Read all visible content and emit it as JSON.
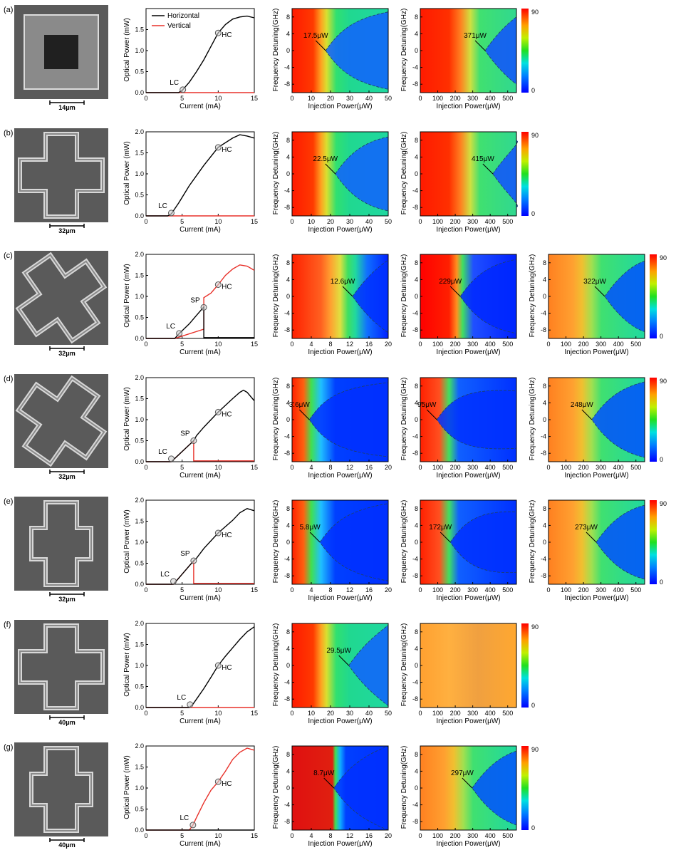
{
  "colorbar": {
    "max": "90",
    "min": "0"
  },
  "labels": {
    "current": "Current (mA)",
    "optical_power": "Optical Power (mW)",
    "injection_power": "Injection Power(μW)",
    "frequency_detuning": "Frequency Detuning(GHz)",
    "lc": "LC",
    "hc": "HC",
    "sp": "SP"
  },
  "chart_data": {
    "type": "line",
    "rows": [
      {
        "label": "(a)",
        "scale": "14μm",
        "shape": "square",
        "li": {
          "xlim": [
            0,
            15
          ],
          "ylim": [
            0,
            2.0
          ],
          "yticks": [
            "0.0",
            "0.5",
            "1.0",
            "1.5"
          ],
          "legend": [
            "Horizontal",
            "Vertical"
          ],
          "horizontal": [
            [
              0,
              0
            ],
            [
              4.5,
              0
            ],
            [
              5,
              0.05
            ],
            [
              6,
              0.25
            ],
            [
              7,
              0.5
            ],
            [
              8,
              0.78
            ],
            [
              9,
              1.1
            ],
            [
              10,
              1.42
            ],
            [
              11,
              1.62
            ],
            [
              12,
              1.75
            ],
            [
              13,
              1.8
            ],
            [
              14,
              1.82
            ],
            [
              15,
              1.78
            ]
          ],
          "vertical": [
            [
              0,
              0
            ],
            [
              15,
              0
            ]
          ],
          "markers": [
            {
              "name": "LC",
              "x": 5.1,
              "y": 0.07
            },
            {
              "name": "HC",
              "x": 10,
              "y": 1.42
            }
          ]
        },
        "maps": [
          {
            "xlim": [
              0,
              50
            ],
            "xticks": [
              0,
              10,
              20,
              30,
              40,
              50
            ],
            "thr": "17.5μW",
            "tx": 17.5,
            "style": "A",
            "w": 0.46
          },
          {
            "xlim": [
              0,
              550
            ],
            "xticks": [
              0,
              100,
              200,
              300,
              400,
              500
            ],
            "thr": "371μW",
            "tx": 371,
            "style": "B",
            "w": 0.4
          }
        ]
      },
      {
        "label": "(b)",
        "scale": "32μm",
        "shape": "cross",
        "li": {
          "xlim": [
            0,
            15
          ],
          "ylim": [
            0,
            2.0
          ],
          "yticks": [
            "0.0",
            "0.5",
            "1.0",
            "1.5",
            "2.0"
          ],
          "horizontal": [
            [
              0,
              0
            ],
            [
              3,
              0
            ],
            [
              3.5,
              0.05
            ],
            [
              4.5,
              0.3
            ],
            [
              6,
              0.72
            ],
            [
              8,
              1.2
            ],
            [
              10,
              1.63
            ],
            [
              12,
              1.85
            ],
            [
              13,
              1.93
            ],
            [
              14,
              1.9
            ],
            [
              15,
              1.85
            ]
          ],
          "vertical": [
            [
              0,
              0
            ],
            [
              15,
              0
            ]
          ],
          "markers": [
            {
              "name": "LC",
              "x": 3.5,
              "y": 0.07
            },
            {
              "name": "HC",
              "x": 10,
              "y": 1.63
            }
          ]
        },
        "maps": [
          {
            "xlim": [
              0,
              50
            ],
            "xticks": [
              0,
              10,
              20,
              30,
              40,
              50
            ],
            "thr": "22.5μW",
            "tx": 22.5,
            "style": "A",
            "w": 0.44
          },
          {
            "xlim": [
              0,
              550
            ],
            "xticks": [
              0,
              100,
              200,
              300,
              400,
              500
            ],
            "thr": "415μW",
            "tx": 415,
            "style": "B",
            "w": 0.4
          }
        ]
      },
      {
        "label": "(c)",
        "scale": "32μm",
        "shape": "cross-rot",
        "li": {
          "xlim": [
            0,
            15
          ],
          "ylim": [
            0,
            2.0
          ],
          "yticks": [
            "0.0",
            "0.5",
            "1.0",
            "1.5",
            "2.0"
          ],
          "horizontal": [
            [
              0,
              0
            ],
            [
              4,
              0
            ],
            [
              4.5,
              0.1
            ],
            [
              6,
              0.35
            ],
            [
              7,
              0.55
            ],
            [
              8,
              0.75
            ],
            [
              8,
              0.02
            ],
            [
              15,
              0.02
            ]
          ],
          "vertical": [
            [
              0,
              0
            ],
            [
              4,
              0
            ],
            [
              8,
              0.22
            ],
            [
              8,
              0.97
            ],
            [
              9,
              1.08
            ],
            [
              10,
              1.28
            ],
            [
              11,
              1.5
            ],
            [
              12,
              1.65
            ],
            [
              13,
              1.75
            ],
            [
              14,
              1.72
            ],
            [
              15,
              1.62
            ]
          ],
          "markers": [
            {
              "name": "LC",
              "x": 4.6,
              "y": 0.12
            },
            {
              "name": "SP",
              "x": 8,
              "y": 0.74
            },
            {
              "name": "HC",
              "x": 10,
              "y": 1.28
            }
          ]
        },
        "maps": [
          {
            "xlim": [
              0,
              20
            ],
            "xticks": [
              0,
              4,
              8,
              12,
              16,
              20
            ],
            "thr": "12.6μW",
            "tx": 12.6,
            "style": "C",
            "w": 0.43
          },
          {
            "xlim": [
              0,
              550
            ],
            "xticks": [
              0,
              100,
              200,
              300,
              400,
              500
            ],
            "thr": "229μW",
            "tx": 229,
            "style": "D",
            "w": 0.44
          },
          {
            "xlim": [
              0,
              550
            ],
            "xticks": [
              0,
              100,
              200,
              300,
              400,
              500
            ],
            "thr": "322μW",
            "tx": 322,
            "style": "E",
            "w": 0.42
          }
        ]
      },
      {
        "label": "(d)",
        "scale": "32μm",
        "shape": "cross-rot2",
        "li": {
          "xlim": [
            0,
            15
          ],
          "ylim": [
            0,
            2.0
          ],
          "yticks": [
            "0.0",
            "0.5",
            "1.0",
            "1.5",
            "2.0"
          ],
          "horizontal": [
            [
              0,
              0
            ],
            [
              3.5,
              0
            ],
            [
              6.6,
              0.5
            ],
            [
              7,
              0.62
            ],
            [
              8,
              0.82
            ],
            [
              10,
              1.18
            ],
            [
              12,
              1.5
            ],
            [
              13,
              1.65
            ],
            [
              13.5,
              1.7
            ],
            [
              14,
              1.65
            ],
            [
              15,
              1.45
            ]
          ],
          "vertical": [
            [
              0,
              0
            ],
            [
              3.5,
              0
            ],
            [
              6.6,
              0.5
            ],
            [
              6.6,
              0.02
            ],
            [
              15,
              0.02
            ]
          ],
          "markers": [
            {
              "name": "LC",
              "x": 3.5,
              "y": 0.07
            },
            {
              "name": "SP",
              "x": 6.6,
              "y": 0.5
            },
            {
              "name": "HC",
              "x": 10,
              "y": 1.18
            }
          ]
        },
        "maps": [
          {
            "xlim": [
              0,
              20
            ],
            "xticks": [
              0,
              4,
              8,
              12,
              16,
              20
            ],
            "thr": "3.6μW",
            "tx": 3.6,
            "style": "F",
            "w": 0.44
          },
          {
            "xlim": [
              0,
              550
            ],
            "xticks": [
              0,
              100,
              200,
              300,
              400,
              500
            ],
            "thr": "95μW",
            "tx": 95,
            "style": "G",
            "w": 0.34
          },
          {
            "xlim": [
              0,
              550
            ],
            "xticks": [
              0,
              100,
              200,
              300,
              400,
              500
            ],
            "thr": "248μW",
            "tx": 248,
            "style": "E",
            "w": 0.45
          }
        ]
      },
      {
        "label": "(e)",
        "scale": "32μm",
        "shape": "cross-vert",
        "li": {
          "xlim": [
            0,
            15
          ],
          "ylim": [
            0,
            2.0
          ],
          "yticks": [
            "0.0",
            "0.5",
            "1.0",
            "1.5",
            "2.0"
          ],
          "horizontal": [
            [
              0,
              0
            ],
            [
              3.8,
              0
            ],
            [
              6.6,
              0.56
            ],
            [
              7,
              0.62
            ],
            [
              8,
              0.85
            ],
            [
              10,
              1.22
            ],
            [
              12,
              1.52
            ],
            [
              13,
              1.7
            ],
            [
              14,
              1.8
            ],
            [
              15,
              1.75
            ]
          ],
          "vertical": [
            [
              0,
              0
            ],
            [
              3.8,
              0
            ],
            [
              6.6,
              0.56
            ],
            [
              6.6,
              0.02
            ],
            [
              15,
              0.02
            ]
          ],
          "markers": [
            {
              "name": "LC",
              "x": 3.8,
              "y": 0.07
            },
            {
              "name": "SP",
              "x": 6.6,
              "y": 0.56
            },
            {
              "name": "HC",
              "x": 10,
              "y": 1.22
            }
          ]
        },
        "maps": [
          {
            "xlim": [
              0,
              20
            ],
            "xticks": [
              0,
              4,
              8,
              12,
              16,
              20
            ],
            "thr": "5.8μW",
            "tx": 5.8,
            "style": "F",
            "w": 0.46
          },
          {
            "xlim": [
              0,
              550
            ],
            "xticks": [
              0,
              100,
              200,
              300,
              400,
              500
            ],
            "thr": "172μW",
            "tx": 172,
            "style": "G",
            "w": 0.36
          },
          {
            "xlim": [
              0,
              550
            ],
            "xticks": [
              0,
              100,
              200,
              300,
              400,
              500
            ],
            "thr": "273μW",
            "tx": 273,
            "style": "E",
            "w": 0.44
          }
        ]
      },
      {
        "label": "(f)",
        "scale": "40μm",
        "shape": "cross",
        "li": {
          "xlim": [
            0,
            15
          ],
          "ylim": [
            0,
            2.0
          ],
          "yticks": [
            "0.0",
            "0.5",
            "1.0",
            "1.5",
            "2.0"
          ],
          "horizontal": [
            [
              0,
              0
            ],
            [
              6,
              0
            ],
            [
              6.5,
              0.08
            ],
            [
              7,
              0.2
            ],
            [
              8,
              0.45
            ],
            [
              9,
              0.72
            ],
            [
              10,
              1.0
            ],
            [
              11,
              1.22
            ],
            [
              12,
              1.42
            ],
            [
              13,
              1.62
            ],
            [
              14,
              1.8
            ],
            [
              15,
              1.92
            ]
          ],
          "vertical": [
            [
              0,
              0
            ],
            [
              15,
              0
            ]
          ],
          "markers": [
            {
              "name": "LC",
              "x": 6.1,
              "y": 0.07
            },
            {
              "name": "HC",
              "x": 10,
              "y": 1.0
            }
          ]
        },
        "maps": [
          {
            "xlim": [
              0,
              50
            ],
            "xticks": [
              0,
              10,
              20,
              30,
              40,
              50
            ],
            "thr": "29.5μW",
            "tx": 29.5,
            "style": "A",
            "w": 0.48
          },
          {
            "xlim": [
              0,
              550
            ],
            "xticks": [
              0,
              100,
              200,
              300,
              400,
              500
            ],
            "thr": "",
            "tx": 0,
            "style": "H",
            "w": 0
          }
        ]
      },
      {
        "label": "(g)",
        "scale": "40μm",
        "shape": "cross-vert",
        "li": {
          "xlim": [
            0,
            15
          ],
          "ylim": [
            0,
            2.0
          ],
          "yticks": [
            "0.0",
            "0.5",
            "1.0",
            "1.5",
            "2.0"
          ],
          "horizontal": [
            [
              0,
              0
            ],
            [
              15,
              0
            ]
          ],
          "vertical": [
            [
              0,
              0
            ],
            [
              6,
              0
            ],
            [
              6.5,
              0.12
            ],
            [
              7,
              0.3
            ],
            [
              8,
              0.65
            ],
            [
              9,
              0.95
            ],
            [
              10,
              1.15
            ],
            [
              11,
              1.4
            ],
            [
              12,
              1.68
            ],
            [
              13,
              1.85
            ],
            [
              14,
              1.95
            ],
            [
              15,
              1.9
            ]
          ],
          "markers": [
            {
              "name": "LC",
              "x": 6.5,
              "y": 0.12
            },
            {
              "name": "HC",
              "x": 10,
              "y": 1.15
            }
          ]
        },
        "maps": [
          {
            "xlim": [
              0,
              20
            ],
            "xticks": [
              0,
              4,
              8,
              12,
              16,
              20
            ],
            "thr": "8.7μW",
            "tx": 8.7,
            "style": "I",
            "w": 0.5
          },
          {
            "xlim": [
              0,
              550
            ],
            "xticks": [
              0,
              100,
              200,
              300,
              400,
              500
            ],
            "thr": "297μW",
            "tx": 297,
            "style": "E",
            "w": 0.44
          }
        ]
      }
    ]
  }
}
